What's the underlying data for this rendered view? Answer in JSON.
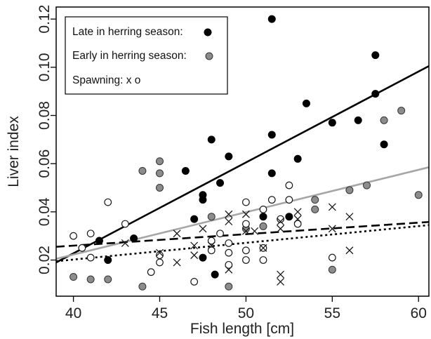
{
  "chart_data": {
    "type": "scatter",
    "title": "",
    "xlabel": "Fish length [cm]",
    "ylabel": "Liver index",
    "xlim": [
      39.0,
      60.6
    ],
    "ylim": [
      0.005,
      0.125
    ],
    "x_ticks": [
      40,
      45,
      50,
      55,
      60
    ],
    "y_ticks": [
      0.02,
      0.04,
      0.06,
      0.08,
      0.1,
      0.12
    ],
    "x_tick_labels": [
      "40",
      "45",
      "50",
      "55",
      "60"
    ],
    "y_tick_labels": [
      "0.02",
      "0.04",
      "0.06",
      "0.08",
      "0.10",
      "0.12"
    ],
    "grid": false,
    "legend_position": "top-left",
    "legend": [
      {
        "text": "Late in herring season:",
        "marker": "filled-black"
      },
      {
        "text": "Early in herring season:",
        "marker": "filled-gray"
      },
      {
        "text": "Spawning: x o",
        "marker": "none"
      }
    ],
    "colors": {
      "late": "#000000",
      "early": "#8c8c8c",
      "spawning": "#1a1a1a",
      "fit_early": "#a6a6a6"
    },
    "series": [
      {
        "name": "Late in herring season:",
        "marker": "filled-black",
        "points": [
          [
            42,
            0.02
          ],
          [
            41.5,
            0.028
          ],
          [
            43.5,
            0.029
          ],
          [
            46.5,
            0.057
          ],
          [
            47,
            0.037
          ],
          [
            47.5,
            0.047
          ],
          [
            47.5,
            0.045
          ],
          [
            48,
            0.07
          ],
          [
            48.5,
            0.052
          ],
          [
            49,
            0.063
          ],
          [
            47.5,
            0.021
          ],
          [
            48.2,
            0.014
          ],
          [
            51,
            0.038
          ],
          [
            51.5,
            0.12
          ],
          [
            51.5,
            0.072
          ],
          [
            51.5,
            0.056
          ],
          [
            52.5,
            0.038
          ],
          [
            53,
            0.062
          ],
          [
            53.5,
            0.085
          ],
          [
            55,
            0.077
          ],
          [
            56.5,
            0.078
          ],
          [
            57.5,
            0.105
          ],
          [
            57.5,
            0.089
          ],
          [
            58,
            0.068
          ]
        ]
      },
      {
        "name": "Early in herring season:",
        "marker": "filled-gray",
        "points": [
          [
            40,
            0.013
          ],
          [
            41,
            0.012
          ],
          [
            42,
            0.012
          ],
          [
            44,
            0.057
          ],
          [
            44,
            0.009
          ],
          [
            45,
            0.061
          ],
          [
            45,
            0.056
          ],
          [
            45,
            0.05
          ],
          [
            48,
            0.038
          ],
          [
            49,
            0.009
          ],
          [
            50,
            0.033
          ],
          [
            51,
            0.034
          ],
          [
            54,
            0.041
          ],
          [
            54,
            0.045
          ],
          [
            55,
            0.016
          ],
          [
            56,
            0.049
          ],
          [
            57,
            0.051
          ],
          [
            58,
            0.078
          ],
          [
            59,
            0.082
          ],
          [
            60,
            0.047
          ]
        ]
      },
      {
        "name": "Spawning: x o",
        "marker": "open-circle",
        "points": [
          [
            40,
            0.03
          ],
          [
            40.5,
            0.025
          ],
          [
            41,
            0.031
          ],
          [
            41,
            0.021
          ],
          [
            42,
            0.044
          ],
          [
            43,
            0.035
          ],
          [
            44.5,
            0.015
          ],
          [
            45,
            0.022
          ],
          [
            45,
            0.019
          ],
          [
            47,
            0.011
          ],
          [
            48,
            0.028
          ],
          [
            48,
            0.024
          ],
          [
            48.5,
            0.031
          ],
          [
            49,
            0.027
          ],
          [
            49,
            0.023
          ],
          [
            49,
            0.018
          ],
          [
            50,
            0.044
          ],
          [
            50,
            0.035
          ],
          [
            50,
            0.024
          ],
          [
            50,
            0.02
          ],
          [
            51,
            0.041
          ],
          [
            51,
            0.025
          ],
          [
            51,
            0.02
          ],
          [
            51.5,
            0.045
          ],
          [
            52,
            0.037
          ],
          [
            52.5,
            0.051
          ],
          [
            52.5,
            0.045
          ],
          [
            53,
            0.035
          ],
          [
            55,
            0.021
          ]
        ]
      },
      {
        "name": "Spawning: x o",
        "marker": "cross",
        "points": [
          [
            43,
            0.027
          ],
          [
            45,
            0.023
          ],
          [
            46,
            0.019
          ],
          [
            46,
            0.031
          ],
          [
            47,
            0.026
          ],
          [
            47,
            0.022
          ],
          [
            47.5,
            0.033
          ],
          [
            48,
            0.026
          ],
          [
            49,
            0.039
          ],
          [
            49,
            0.036
          ],
          [
            49,
            0.016
          ],
          [
            50,
            0.039
          ],
          [
            50,
            0.032
          ],
          [
            50.5,
            0.032
          ],
          [
            51,
            0.025
          ],
          [
            52,
            0.036
          ],
          [
            52,
            0.033
          ],
          [
            52,
            0.014
          ],
          [
            52,
            0.011
          ],
          [
            53,
            0.04
          ],
          [
            53,
            0.037
          ],
          [
            55,
            0.042
          ],
          [
            55,
            0.033
          ],
          [
            56,
            0.038
          ],
          [
            56,
            0.024
          ]
        ]
      }
    ],
    "fit_lines": [
      {
        "series": "Late in herring season:",
        "style": "solid",
        "color": "#000000",
        "x": [
          39.0,
          60.6
        ],
        "y": [
          0.019,
          0.1005
        ]
      },
      {
        "series": "Early in herring season:",
        "style": "solid",
        "color": "#a6a6a6",
        "x": [
          39.0,
          60.6
        ],
        "y": [
          0.0205,
          0.0585
        ]
      },
      {
        "series": "Spawning: x o",
        "style": "dashed",
        "color": "#000000",
        "x": [
          39.0,
          60.6
        ],
        "y": [
          0.0255,
          0.0358
        ]
      },
      {
        "series": "Spawning: x o",
        "style": "dotted",
        "color": "#000000",
        "x": [
          39.0,
          60.6
        ],
        "y": [
          0.0195,
          0.0345
        ]
      }
    ]
  }
}
